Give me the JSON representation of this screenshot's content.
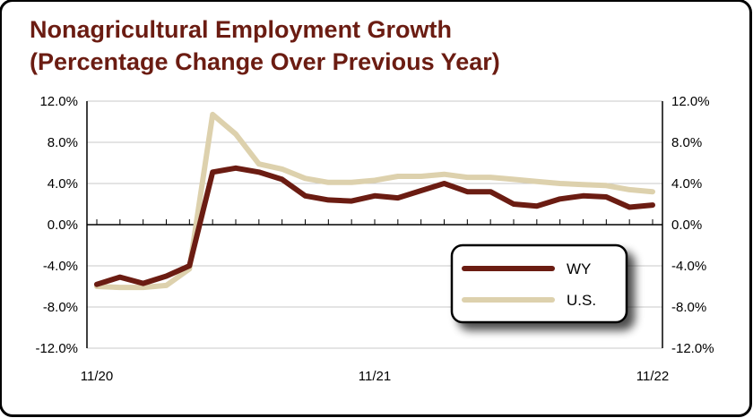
{
  "title": {
    "line1": "Nonagricultural Employment Growth",
    "line2": "(Percentage Change Over Previous Year)"
  },
  "chart_data": {
    "type": "line",
    "title": "Nonagricultural Employment Growth (Percentage Change Over Previous Year)",
    "xlabel": "",
    "ylabel": "",
    "x_tick_labels": [
      "11/20",
      "11/21",
      "11/22"
    ],
    "x": [
      "11/20",
      "12/20",
      "1/21",
      "2/21",
      "3/21",
      "4/21",
      "5/21",
      "6/21",
      "7/21",
      "8/21",
      "9/21",
      "10/21",
      "11/21",
      "12/21",
      "1/22",
      "2/22",
      "3/22",
      "4/22",
      "5/22",
      "6/22",
      "7/22",
      "8/22",
      "9/22",
      "10/22",
      "11/22"
    ],
    "ylim": [
      -12.0,
      12.0
    ],
    "y_ticks": [
      "12.0%",
      "8.0%",
      "4.0%",
      "0.0%",
      "-4.0%",
      "-8.0%",
      "-12.0%"
    ],
    "y_tick_values": [
      12,
      8,
      4,
      0,
      -4,
      -8,
      -12
    ],
    "grid": true,
    "legend": "bottom-right",
    "series": [
      {
        "name": "WY",
        "color": "#6b1c12",
        "values": [
          -5.8,
          -5.1,
          -5.7,
          -5.0,
          -4.0,
          5.1,
          5.5,
          5.1,
          4.4,
          2.8,
          2.4,
          2.3,
          2.8,
          2.6,
          3.3,
          4.0,
          3.2,
          3.2,
          2.0,
          1.8,
          2.5,
          2.8,
          2.7,
          1.7,
          1.9
        ]
      },
      {
        "name": "U.S.",
        "color": "#ddd1ad",
        "values": [
          -6.0,
          -6.1,
          -6.1,
          -5.9,
          -4.3,
          10.7,
          8.8,
          5.9,
          5.4,
          4.5,
          4.1,
          4.1,
          4.3,
          4.7,
          4.7,
          4.9,
          4.6,
          4.6,
          4.4,
          4.2,
          4.0,
          3.9,
          3.8,
          3.4,
          3.2
        ]
      }
    ]
  }
}
